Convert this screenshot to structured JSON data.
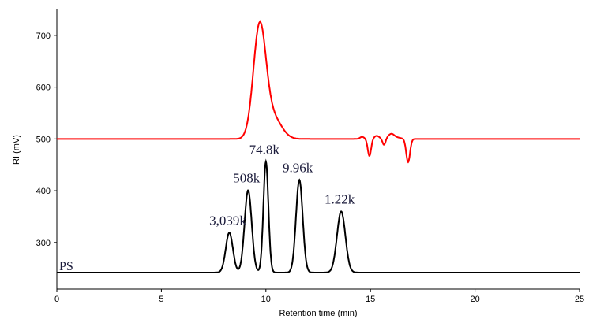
{
  "chart_data": {
    "type": "line",
    "title": "",
    "xlabel": "Retention time (min)",
    "ylabel": "RI (mV)",
    "xlim": [
      0,
      25
    ],
    "ylim": [
      210,
      750
    ],
    "xticks": [
      0,
      5,
      10,
      15,
      20,
      25
    ],
    "yticks": [
      300,
      400,
      500,
      600,
      700
    ],
    "grid": false,
    "series": [
      {
        "name": "RI",
        "color": "#ff0000",
        "baseline": 500,
        "peaks": [
          [
            9.7,
            215,
            0.3
          ],
          [
            10.35,
            40,
            0.4
          ],
          [
            14.6,
            4,
            0.1
          ],
          [
            14.95,
            -33,
            0.08
          ],
          [
            15.3,
            6,
            0.12
          ],
          [
            15.65,
            -12,
            0.07
          ],
          [
            16.0,
            10,
            0.15
          ],
          [
            16.35,
            2,
            0.15
          ],
          [
            16.8,
            -45,
            0.09
          ]
        ]
      },
      {
        "name": "PS",
        "color": "#000000",
        "baseline": 242,
        "peaks": [
          [
            8.25,
            77,
            0.17
          ],
          [
            9.15,
            159,
            0.17
          ],
          [
            10.0,
            214,
            0.12
          ],
          [
            11.6,
            179,
            0.16
          ],
          [
            13.6,
            118,
            0.2
          ]
        ]
      }
    ],
    "annotations": [
      {
        "text": "3,039k",
        "x": 8.25,
        "y": 319
      },
      {
        "text": "508k",
        "x": 9.15,
        "y": 401
      },
      {
        "text": "74.8k",
        "x": 10.0,
        "y": 456
      },
      {
        "text": "9.96k",
        "x": 11.6,
        "y": 421
      },
      {
        "text": "1.22k",
        "x": 13.6,
        "y": 360
      }
    ],
    "series_label": "PS"
  }
}
